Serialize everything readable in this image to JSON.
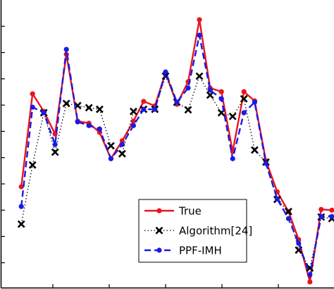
{
  "chart_data": {
    "type": "line",
    "x": [
      0.44,
      0.64,
      0.84,
      1.04,
      1.24,
      1.44,
      1.64,
      1.83,
      2.03,
      2.23,
      2.43,
      2.61,
      2.81,
      3.0,
      3.2,
      3.4,
      3.6,
      3.79,
      3.99,
      4.19,
      4.39,
      4.58,
      4.78,
      4.98,
      5.18,
      5.36,
      5.56,
      5.76,
      5.95
    ],
    "series": [
      {
        "name": "True",
        "color": "#e8141e",
        "dash": "solid",
        "marker": "dot",
        "values": [
          3.89,
          7.43,
          6.76,
          5.9,
          8.93,
          6.39,
          6.31,
          5.96,
          4.96,
          5.64,
          6.39,
          7.14,
          6.97,
          8.24,
          7.03,
          7.89,
          10.25,
          7.65,
          7.51,
          5.23,
          7.51,
          7.16,
          4.88,
          3.7,
          2.95,
          1.88,
          0.27,
          3.03,
          3.0
        ]
      },
      {
        "name": "Algorithm[24]",
        "color": "#000000",
        "dash": "dotted",
        "marker": "cross",
        "values": [
          2.47,
          4.72,
          6.71,
          5.21,
          7.06,
          6.98,
          6.9,
          6.84,
          5.45,
          5.15,
          6.76,
          6.84,
          6.84,
          8.1,
          7.11,
          6.82,
          8.1,
          7.38,
          6.71,
          6.57,
          7.24,
          5.29,
          4.83,
          3.41,
          2.95,
          1.48,
          0.8,
          2.74,
          2.68
        ]
      },
      {
        "name": "PPF-IMH",
        "color": "#1a1ae6",
        "dash": "dashed",
        "marker": "dot",
        "values": [
          3.14,
          6.92,
          6.71,
          5.5,
          9.12,
          6.36,
          6.22,
          6.09,
          4.96,
          5.5,
          6.22,
          6.84,
          6.84,
          8.26,
          7.11,
          7.65,
          9.66,
          7.57,
          7.24,
          4.96,
          6.71,
          7.11,
          4.78,
          3.43,
          2.68,
          1.74,
          0.54,
          2.76,
          2.76
        ]
      }
    ],
    "xlim": [
      0.0625,
      5.9875
    ],
    "xticks": [
      1,
      2,
      3,
      4,
      5
    ],
    "ylim": [
      0,
      11
    ],
    "yticks": [
      1,
      2,
      3,
      4,
      5,
      6,
      7,
      8,
      9,
      10
    ],
    "legend": "lower-right"
  }
}
